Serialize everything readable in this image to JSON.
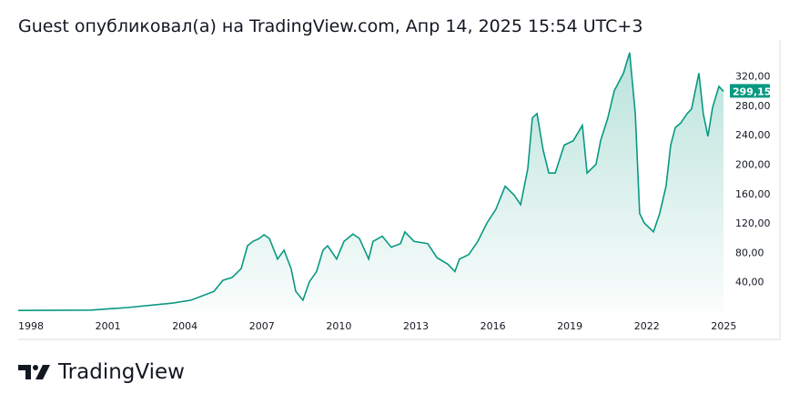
{
  "header": {
    "title": "Guest опубликовал(а) на TradingView.com, Апр 14, 2025 15:54 UTC+3"
  },
  "brand": {
    "name": "TradingView"
  },
  "colors": {
    "line": "#089981",
    "label_bg": "#089981"
  },
  "chart_data": {
    "type": "area",
    "last_price_label": "299,15",
    "x_ticks": [
      "1998",
      "2001",
      "2004",
      "2007",
      "2010",
      "2013",
      "2016",
      "2019",
      "2022",
      "2025"
    ],
    "y_ticks": [
      "40,00",
      "80,00",
      "120,00",
      "160,00",
      "200,00",
      "240,00",
      "280,00",
      "320,00"
    ],
    "ylim": [
      0,
      350
    ],
    "xlim": [
      1997.5,
      2025.5
    ],
    "grid": false,
    "x": [
      1997.5,
      2000.34,
      2001.76,
      2003.53,
      2004.24,
      2005.13,
      2005.48,
      2005.84,
      2006.19,
      2006.44,
      2006.65,
      2006.9,
      2007.08,
      2007.29,
      2007.61,
      2007.86,
      2008.14,
      2008.32,
      2008.6,
      2008.85,
      2009.13,
      2009.38,
      2009.56,
      2009.91,
      2010.2,
      2010.55,
      2010.8,
      2011.16,
      2011.33,
      2011.69,
      2012.04,
      2012.4,
      2012.57,
      2012.93,
      2013.46,
      2013.82,
      2014.24,
      2014.52,
      2014.7,
      2015.06,
      2015.41,
      2015.77,
      2016.12,
      2016.48,
      2016.83,
      2017.08,
      2017.36,
      2017.54,
      2017.72,
      2017.96,
      2018.18,
      2018.43,
      2018.78,
      2019.13,
      2019.49,
      2019.67,
      2020.02,
      2020.2,
      2020.48,
      2020.73,
      2021.09,
      2021.33,
      2021.55,
      2021.72,
      2021.9,
      2022.26,
      2022.5,
      2022.75,
      2022.93,
      2023.11,
      2023.32,
      2023.57,
      2023.74,
      2024.03,
      2024.2,
      2024.38,
      2024.56,
      2024.81,
      2024.99
    ],
    "y": [
      1,
      1.5,
      5,
      11,
      15,
      27,
      42,
      46,
      58,
      89,
      95,
      99,
      104,
      99,
      71,
      83,
      58,
      27,
      15,
      40,
      54,
      83,
      89,
      71,
      95,
      105,
      99,
      71,
      95,
      102,
      87,
      92,
      108,
      95,
      92,
      73,
      64,
      54,
      71,
      77,
      95,
      120,
      139,
      170,
      158,
      145,
      194,
      263,
      269,
      219,
      188,
      188,
      226,
      232,
      253,
      188,
      200,
      232,
      263,
      300,
      324,
      352,
      269,
      133,
      120,
      108,
      133,
      170,
      226,
      250,
      256,
      269,
      275,
      324,
      269,
      238,
      277,
      306,
      299.15
    ]
  }
}
